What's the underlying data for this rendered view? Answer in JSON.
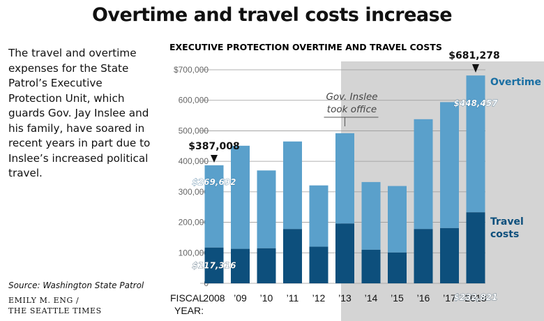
{
  "title": "Overtime and travel costs increase",
  "intro": "The travel and overtime expenses for the State Patrol’s Executive Protection Unit, which guards Gov. Jay Inslee and his family, have soared in recent years in part due to Inslee’s increased political travel.",
  "source": "Source: Washington State Patrol",
  "credit": [
    "EMILY M. ENG /",
    "THE SEATTLE TIMES"
  ],
  "colors": {
    "overtime": "#5aa0cb",
    "travel": "#0d4f7c",
    "highlight_band": "#d4d4d4",
    "grid": "#999999",
    "accent_text": "#1a6fa3",
    "value_label_fill": "#ffffff"
  },
  "chart_data": {
    "type": "bar",
    "stacked": true,
    "title": "EXECUTIVE PROTECTION OVERTIME AND TRAVEL COSTS",
    "x_axis_label": [
      "FISCAL",
      "YEAR:"
    ],
    "categories": [
      "2008",
      "’09",
      "’10",
      "’11",
      "’12",
      "’13",
      "’14",
      "’15",
      "’16",
      "’17",
      "2018"
    ],
    "series": [
      {
        "name": "Travel costs",
        "values": [
          117316,
          113000,
          115000,
          178000,
          120000,
          196000,
          110000,
          101000,
          178000,
          181000,
          232821
        ]
      },
      {
        "name": "Overtime",
        "values": [
          269692,
          338000,
          255000,
          287000,
          201000,
          296000,
          222000,
          218000,
          360000,
          413000,
          448457
        ]
      }
    ],
    "ylim": [
      0,
      700000
    ],
    "yticks": [
      0,
      100000,
      200000,
      300000,
      400000,
      500000,
      600000,
      700000
    ],
    "ytick_labels": [
      "0",
      "100,000",
      "200,000",
      "300,000",
      "400,000",
      "500,000",
      "600,000",
      "$700,000"
    ],
    "grid": true,
    "highlighted_period_from": "’13",
    "annotations": {
      "inslee": [
        "Gov. Inslee",
        "took office"
      ],
      "total_2008": "$387,008",
      "total_2018": "$681,278",
      "overtime_2008": "$269,692",
      "travel_2008": "$117,316",
      "overtime_2018": "$448,457",
      "travel_2018": "$232,821",
      "legend_overtime": "Overtime",
      "legend_travel": [
        "Travel",
        "costs"
      ]
    }
  }
}
